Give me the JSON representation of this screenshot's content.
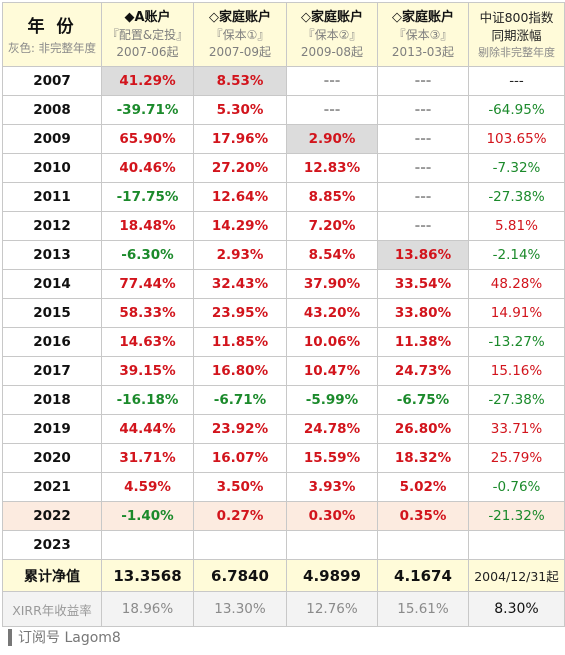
{
  "header": {
    "year_title": "年 份",
    "year_note": "灰色: 非完整年度",
    "accounts": [
      {
        "name": "◆A账户",
        "sub1": "『配置&定投』",
        "sub2": "2007-06起"
      },
      {
        "name": "◇家庭账户",
        "sub1": "『保本①』",
        "sub2": "2007-09起"
      },
      {
        "name": "◇家庭账户",
        "sub1": "『保本②』",
        "sub2": "2009-08起"
      },
      {
        "name": "◇家庭账户",
        "sub1": "『保本③』",
        "sub2": "2013-03起"
      }
    ],
    "index": {
      "line1": "中证800指数",
      "line2": "同期涨幅",
      "line3": "剔除非完整年度"
    }
  },
  "rows": [
    {
      "year": "2007",
      "cells": [
        "41.29%",
        "8.53%",
        "---",
        "---",
        "---"
      ]
    },
    {
      "year": "2008",
      "cells": [
        "-39.71%",
        "5.30%",
        "---",
        "---",
        "-64.95%"
      ]
    },
    {
      "year": "2009",
      "cells": [
        "65.90%",
        "17.96%",
        "2.90%",
        "---",
        "103.65%"
      ]
    },
    {
      "year": "2010",
      "cells": [
        "40.46%",
        "27.20%",
        "12.83%",
        "---",
        "-7.32%"
      ]
    },
    {
      "year": "2011",
      "cells": [
        "-17.75%",
        "12.64%",
        "8.85%",
        "---",
        "-27.38%"
      ]
    },
    {
      "year": "2012",
      "cells": [
        "18.48%",
        "14.29%",
        "7.20%",
        "---",
        "5.81%"
      ]
    },
    {
      "year": "2013",
      "cells": [
        "-6.30%",
        "2.93%",
        "8.54%",
        "13.86%",
        "-2.14%"
      ]
    },
    {
      "year": "2014",
      "cells": [
        "77.44%",
        "32.43%",
        "37.90%",
        "33.54%",
        "48.28%"
      ]
    },
    {
      "year": "2015",
      "cells": [
        "58.33%",
        "23.95%",
        "43.20%",
        "33.80%",
        "14.91%"
      ]
    },
    {
      "year": "2016",
      "cells": [
        "14.63%",
        "11.85%",
        "10.06%",
        "11.38%",
        "-13.27%"
      ]
    },
    {
      "year": "2017",
      "cells": [
        "39.15%",
        "16.80%",
        "10.47%",
        "24.73%",
        "15.16%"
      ]
    },
    {
      "year": "2018",
      "cells": [
        "-16.18%",
        "-6.71%",
        "-5.99%",
        "-6.75%",
        "-27.38%"
      ]
    },
    {
      "year": "2019",
      "cells": [
        "44.44%",
        "23.92%",
        "24.78%",
        "26.80%",
        "33.71%"
      ]
    },
    {
      "year": "2020",
      "cells": [
        "31.71%",
        "16.07%",
        "15.59%",
        "18.32%",
        "25.79%"
      ]
    },
    {
      "year": "2021",
      "cells": [
        "4.59%",
        "3.50%",
        "3.93%",
        "5.02%",
        "-0.76%"
      ]
    },
    {
      "year": "2022",
      "cells": [
        "-1.40%",
        "0.27%",
        "0.30%",
        "0.35%",
        "-21.32%"
      ]
    },
    {
      "year": "2023",
      "cells": [
        "",
        "",
        "",
        "",
        ""
      ]
    }
  ],
  "gray_cells": {
    "2007": [
      0,
      1
    ],
    "2009": [
      2
    ],
    "2013": [
      3
    ]
  },
  "highlight_year": "2022",
  "nav": {
    "label": "累计净值",
    "values": [
      "13.3568",
      "6.7840",
      "4.9899",
      "4.1674"
    ],
    "index_note": "2004/12/31起"
  },
  "xirr": {
    "label": "XIRR年收益率",
    "values": [
      "18.96%",
      "13.30%",
      "12.76%",
      "15.61%"
    ],
    "index_value": "8.30%"
  },
  "footer": {
    "text": "订阅号 Lagom8"
  },
  "colors": {
    "positive": "#d2141c",
    "negative": "#1b8a2b",
    "partial_year_gray": "#dcdcdc",
    "highlight_row": "#fcebe0",
    "header_bg": "#fffbd9"
  }
}
